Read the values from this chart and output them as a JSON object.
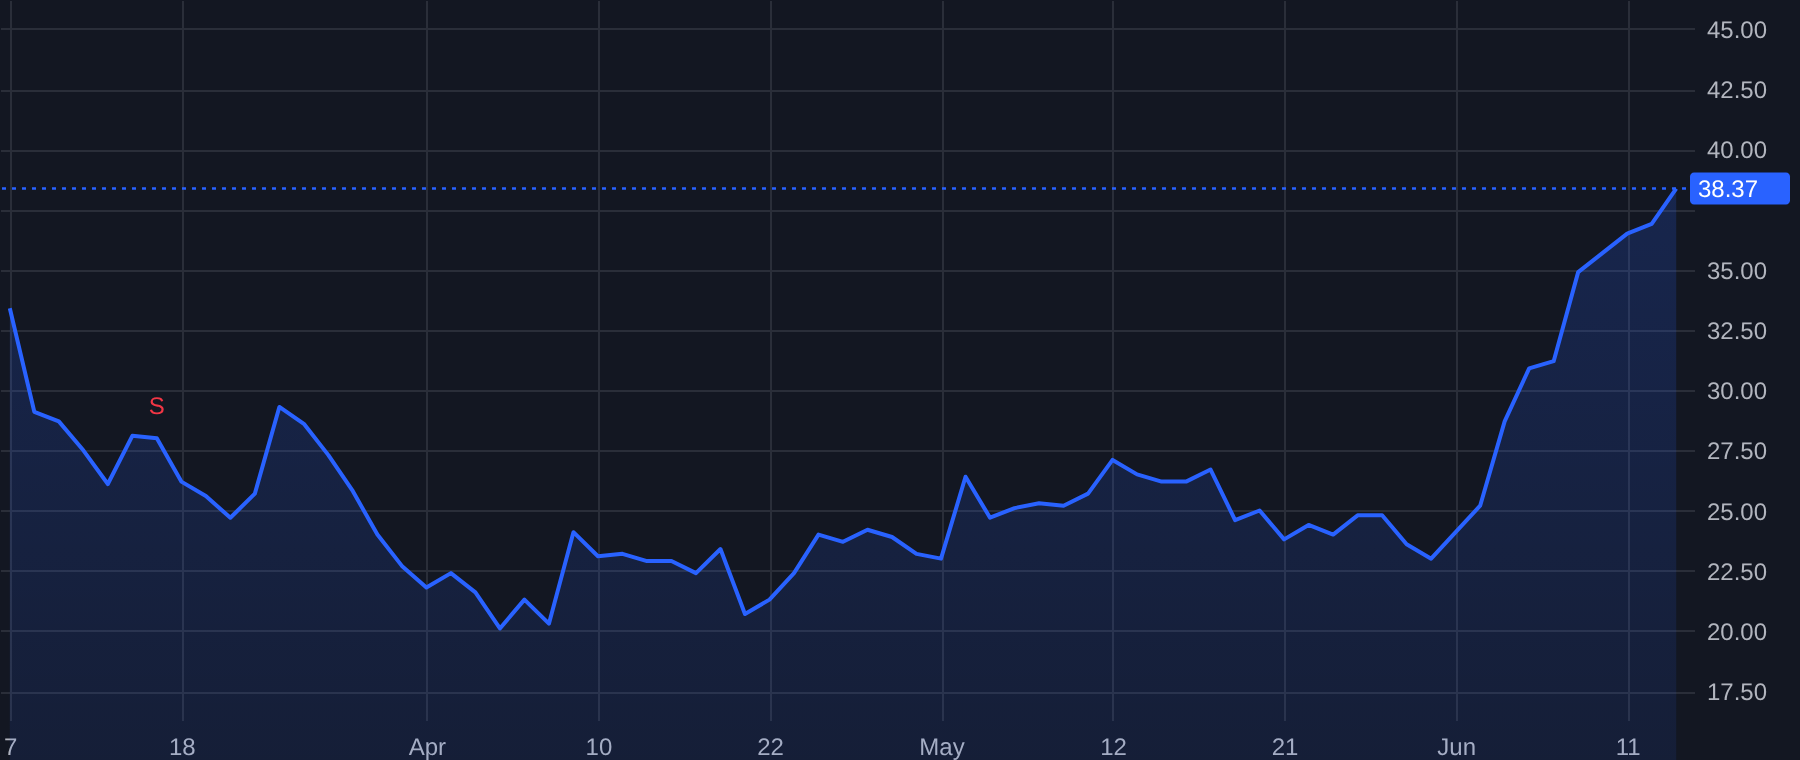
{
  "chart_data": {
    "type": "area",
    "categories": [
      "7",
      null,
      null,
      null,
      null,
      null,
      null,
      "18",
      null,
      null,
      null,
      null,
      null,
      null,
      null,
      null,
      null,
      "Apr",
      null,
      null,
      null,
      null,
      null,
      null,
      "10",
      null,
      null,
      null,
      null,
      null,
      null,
      "22",
      null,
      null,
      null,
      null,
      null,
      null,
      "May",
      null,
      null,
      null,
      null,
      null,
      null,
      "12",
      null,
      null,
      null,
      null,
      null,
      null,
      "21",
      null,
      null,
      null,
      null,
      null,
      null,
      "Jun",
      null,
      null,
      null,
      null,
      null,
      null,
      "11",
      null,
      null
    ],
    "series": [
      {
        "color": "#2962ff",
        "values": [
          33.4,
          29.1,
          28.7,
          27.5,
          26.1,
          28.1,
          28.0,
          26.2,
          25.6,
          24.7,
          25.7,
          29.3,
          28.6,
          27.3,
          25.8,
          24.0,
          22.7,
          21.8,
          22.4,
          21.6,
          20.1,
          21.3,
          20.3,
          24.1,
          23.1,
          23.2,
          22.9,
          22.9,
          22.4,
          23.4,
          20.7,
          21.3,
          22.4,
          24.0,
          23.7,
          24.2,
          23.9,
          23.2,
          23.0,
          26.4,
          24.7,
          25.1,
          25.3,
          25.2,
          25.7,
          27.1,
          26.5,
          26.2,
          26.2,
          26.7,
          24.6,
          25.0,
          23.8,
          24.4,
          24.0,
          24.8,
          24.8,
          23.6,
          23.0,
          24.1,
          25.2,
          28.7,
          30.9,
          31.2,
          34.9,
          35.7,
          36.5,
          36.9,
          38.37
        ]
      }
    ],
    "ylim": [
      16.3,
      46.2
    ],
    "yticks": [
      {
        "value": 17.5,
        "label": "17.50"
      },
      {
        "value": 20,
        "label": "20.00"
      },
      {
        "value": 22.5,
        "label": "22.50"
      },
      {
        "value": 25,
        "label": "25.00"
      },
      {
        "value": 27.5,
        "label": "27.50"
      },
      {
        "value": 30,
        "label": "30.00"
      },
      {
        "value": 32.5,
        "label": "32.50"
      },
      {
        "value": 35,
        "label": "35.00"
      },
      {
        "value": 37.5,
        "label": null
      },
      {
        "value": 40,
        "label": "40.00"
      },
      {
        "value": 42.5,
        "label": "42.50"
      },
      {
        "value": 45,
        "label": "45.00"
      }
    ],
    "grid": true,
    "ref_lines": [
      {
        "axis": "y",
        "value": 38.37,
        "label": "38.37",
        "color": "#2962ff",
        "line_style": "dotted"
      }
    ],
    "annotations": [
      {
        "text": "S",
        "y": 28.0
      }
    ],
    "line_style": "solid",
    "marker": "none"
  }
}
